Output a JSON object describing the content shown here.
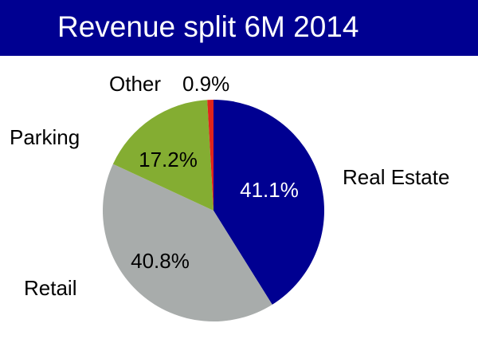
{
  "chart_data": {
    "type": "pie",
    "title": "Revenue split 6M 2014",
    "slices": [
      {
        "label": "Real Estate",
        "value": 41.1,
        "value_label": "41.1%",
        "color": "#000091",
        "value_text_color": "#ffffff"
      },
      {
        "label": "Retail",
        "value": 40.8,
        "value_label": "40.8%",
        "color": "#a8acab",
        "value_text_color": "#000000"
      },
      {
        "label": "Parking",
        "value": 17.2,
        "value_label": "17.2%",
        "color": "#84ad32",
        "value_text_color": "#000000"
      },
      {
        "label": "Other",
        "value": 0.9,
        "value_label": "0.9%",
        "color": "#e0241c",
        "value_text_color": "#000000"
      }
    ],
    "start_direction": "12 o'clock",
    "rotation": "clockwise",
    "legend": "none",
    "title_bar_color": "#000091"
  }
}
